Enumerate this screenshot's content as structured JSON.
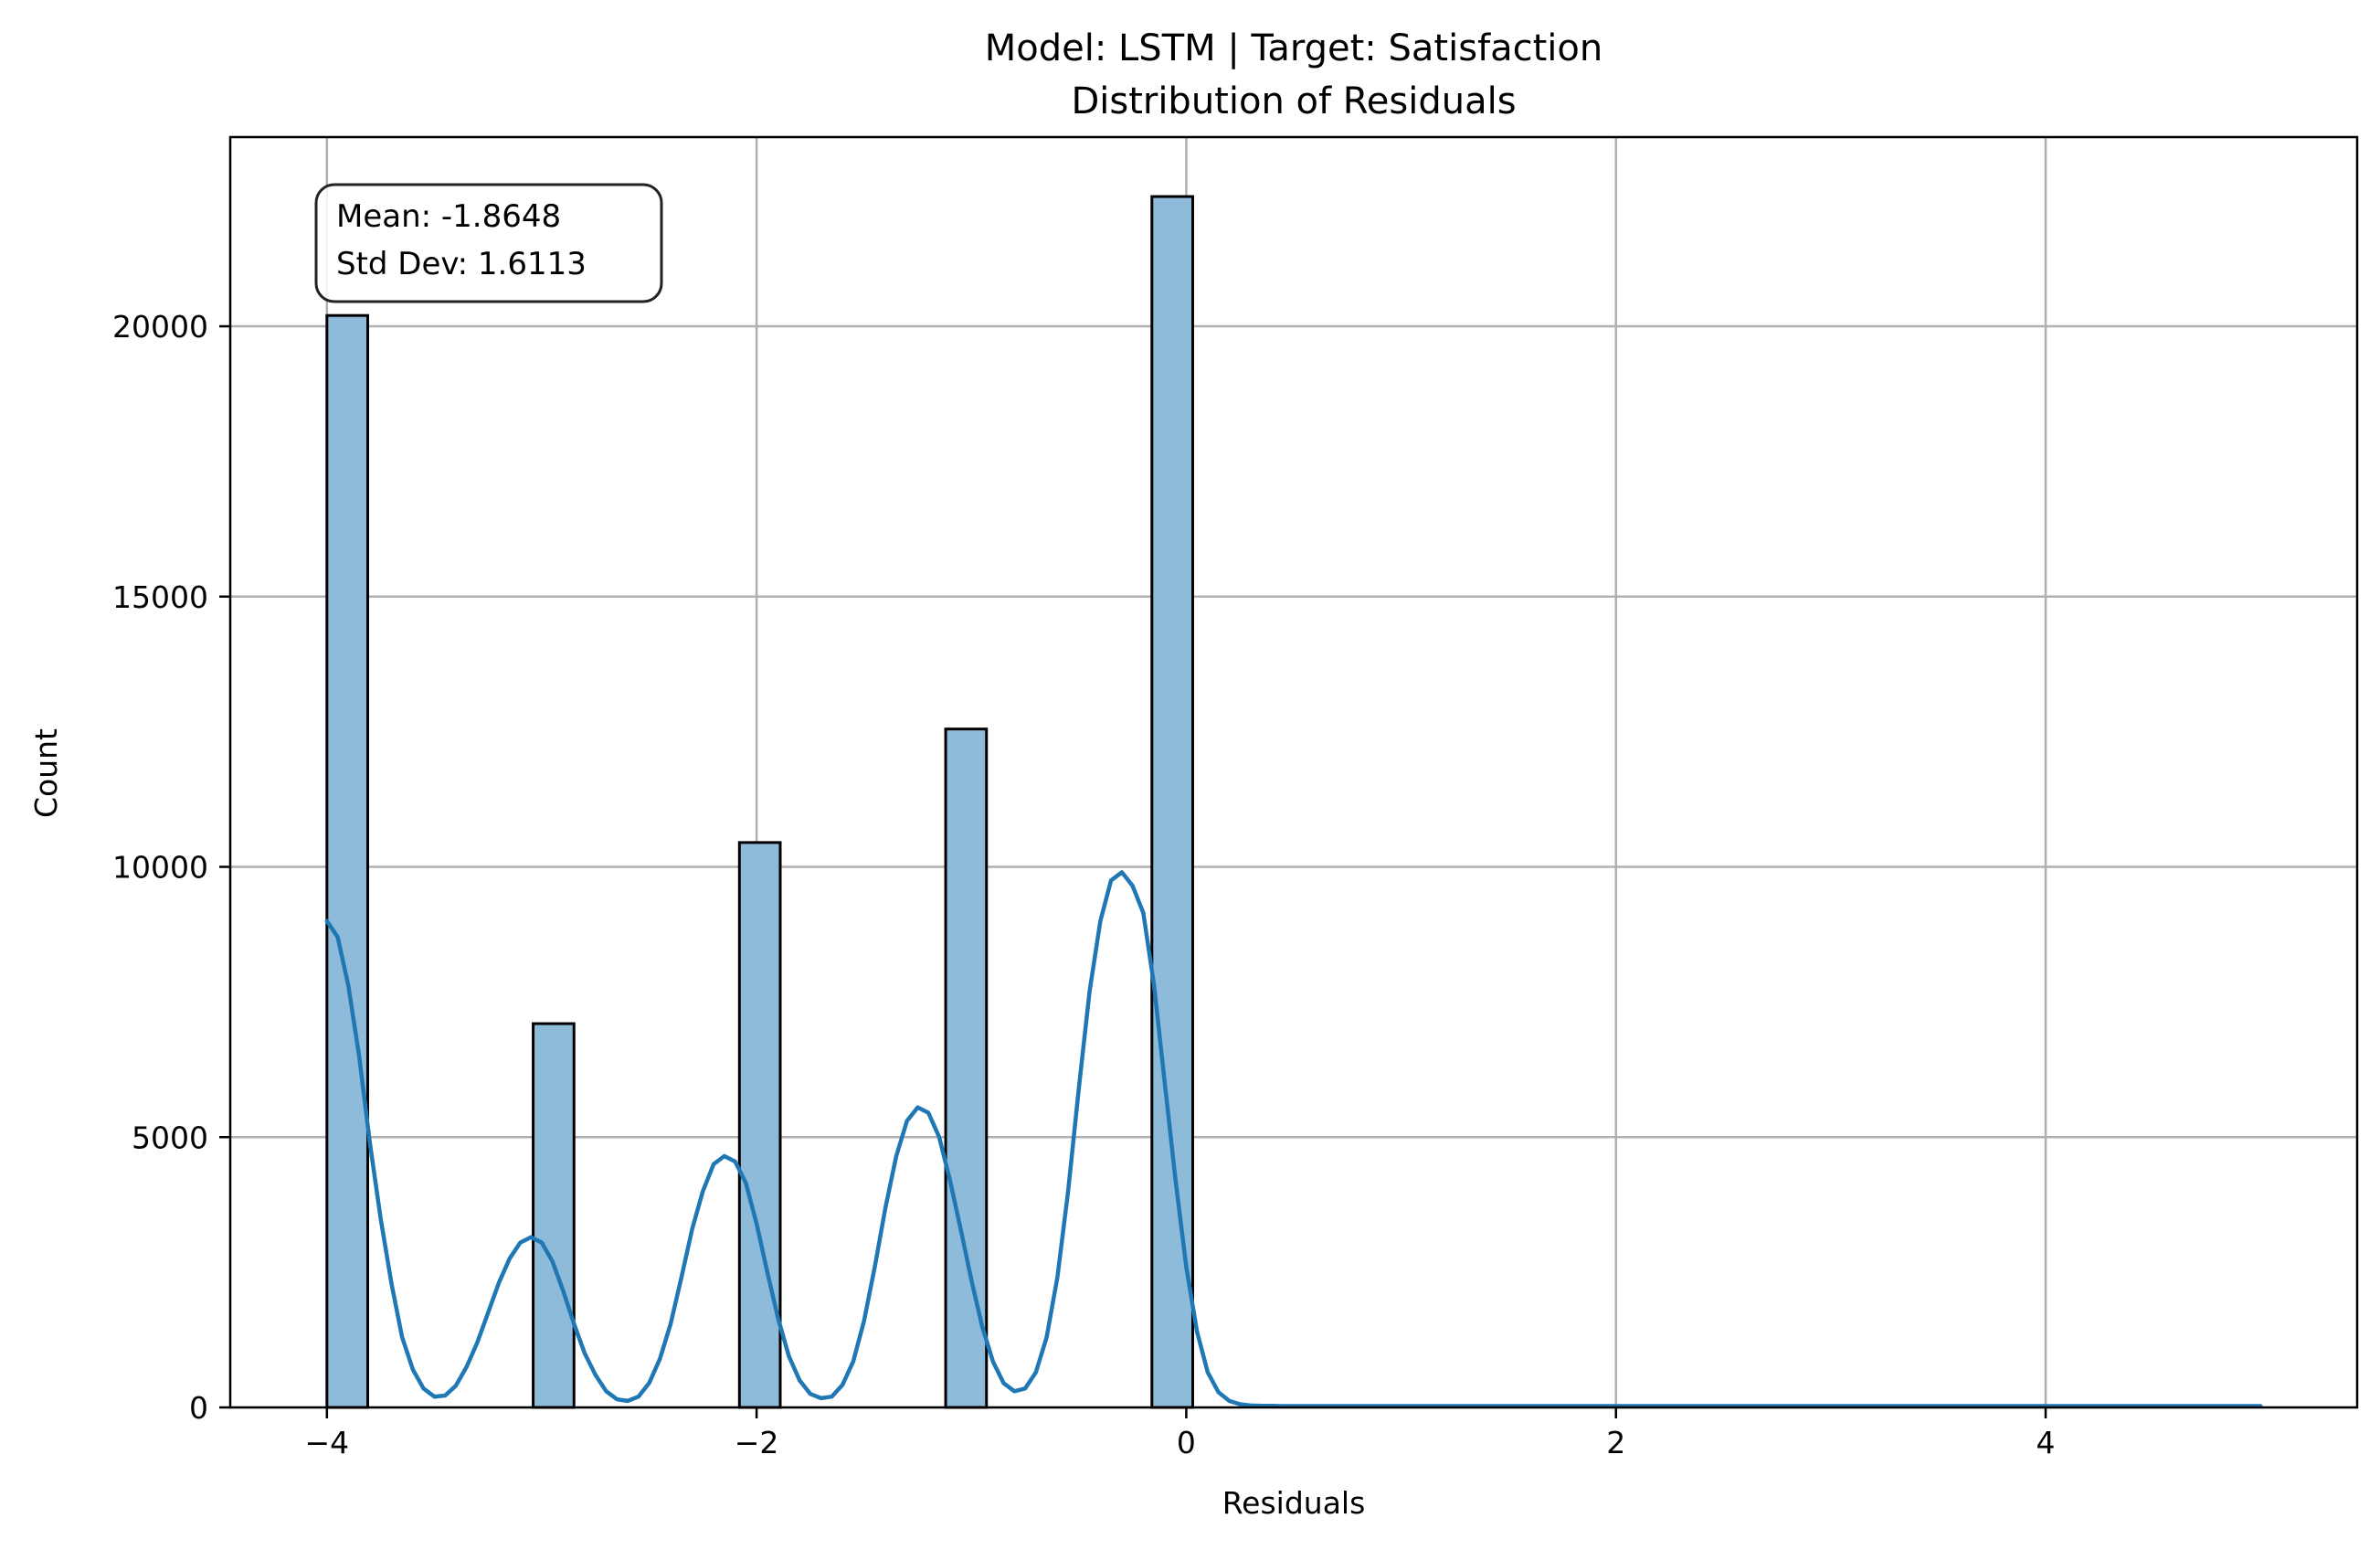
{
  "chart_data": {
    "type": "bar",
    "title": "Model: LSTM | Target: Satisfaction",
    "subtitle": "Distribution of Residuals",
    "xlabel": "Residuals",
    "ylabel": "Count",
    "xlim": [
      -4.45,
      5.45
    ],
    "ylim": [
      0,
      23500
    ],
    "xticks": [
      -4,
      -2,
      0,
      2,
      4
    ],
    "xtick_labels": [
      "−4",
      "−2",
      "0",
      "2",
      "4"
    ],
    "yticks": [
      0,
      5000,
      10000,
      15000,
      20000
    ],
    "ytick_labels": [
      "0",
      "5000",
      "10000",
      "15000",
      "20000"
    ],
    "grid": true,
    "bin_width": 0.19,
    "bars": [
      {
        "x_start": -4.0,
        "x_end": -3.81,
        "count": 20200
      },
      {
        "x_start": -3.04,
        "x_end": -2.85,
        "count": 7100
      },
      {
        "x_start": -2.08,
        "x_end": -1.89,
        "count": 10450
      },
      {
        "x_start": -1.12,
        "x_end": -0.93,
        "count": 12550
      },
      {
        "x_start": -0.16,
        "x_end": 0.03,
        "count": 22400
      }
    ],
    "kde": {
      "x": [
        -4.0,
        -3.95,
        -3.9,
        -3.85,
        -3.8,
        -3.75,
        -3.7,
        -3.65,
        -3.6,
        -3.55,
        -3.5,
        -3.45,
        -3.4,
        -3.35,
        -3.3,
        -3.25,
        -3.2,
        -3.15,
        -3.1,
        -3.05,
        -3.0,
        -2.95,
        -2.9,
        -2.85,
        -2.8,
        -2.75,
        -2.7,
        -2.65,
        -2.6,
        -2.55,
        -2.5,
        -2.45,
        -2.4,
        -2.35,
        -2.3,
        -2.25,
        -2.2,
        -2.15,
        -2.1,
        -2.05,
        -2.0,
        -1.95,
        -1.9,
        -1.85,
        -1.8,
        -1.75,
        -1.7,
        -1.65,
        -1.6,
        -1.55,
        -1.5,
        -1.45,
        -1.4,
        -1.35,
        -1.3,
        -1.25,
        -1.2,
        -1.15,
        -1.1,
        -1.05,
        -1.0,
        -0.95,
        -0.9,
        -0.85,
        -0.8,
        -0.75,
        -0.7,
        -0.65,
        -0.6,
        -0.55,
        -0.5,
        -0.45,
        -0.4,
        -0.35,
        -0.3,
        -0.25,
        -0.2,
        -0.15,
        -0.1,
        -0.05,
        0.0,
        0.05,
        0.1,
        0.15,
        0.2,
        0.25,
        0.3,
        0.35,
        0.4,
        0.45,
        0.5,
        0.55,
        0.6,
        0.7,
        0.8,
        1.0,
        2.0,
        3.0,
        4.0,
        5.0
      ],
      "y": [
        9000,
        8700,
        7800,
        6500,
        4900,
        3500,
        2300,
        1300,
        700,
        350,
        200,
        220,
        400,
        750,
        1200,
        1750,
        2300,
        2750,
        3050,
        3150,
        3050,
        2700,
        2150,
        1550,
        1000,
        600,
        300,
        150,
        120,
        200,
        450,
        900,
        1550,
        2400,
        3300,
        4000,
        4500,
        4650,
        4550,
        4150,
        3400,
        2500,
        1650,
        950,
        500,
        250,
        170,
        200,
        420,
        850,
        1600,
        2600,
        3700,
        4650,
        5300,
        5550,
        5450,
        5000,
        4200,
        3300,
        2350,
        1500,
        850,
        450,
        300,
        350,
        650,
        1300,
        2400,
        4000,
        5900,
        7700,
        9000,
        9750,
        9900,
        9650,
        9150,
        7800,
        6000,
        4200,
        2600,
        1400,
        650,
        280,
        120,
        60,
        35,
        30,
        28,
        25,
        25,
        25,
        25,
        25,
        25,
        25,
        25,
        25,
        25,
        25
      ]
    },
    "stats": {
      "mean_label": "Mean: -1.8648",
      "std_label": "Std Dev: 1.6113"
    },
    "colors": {
      "bar_fill": "#8fbbdb",
      "bar_edge": "#000000",
      "kde_line": "#1f77b4",
      "grid": "#b0b0b0"
    }
  }
}
